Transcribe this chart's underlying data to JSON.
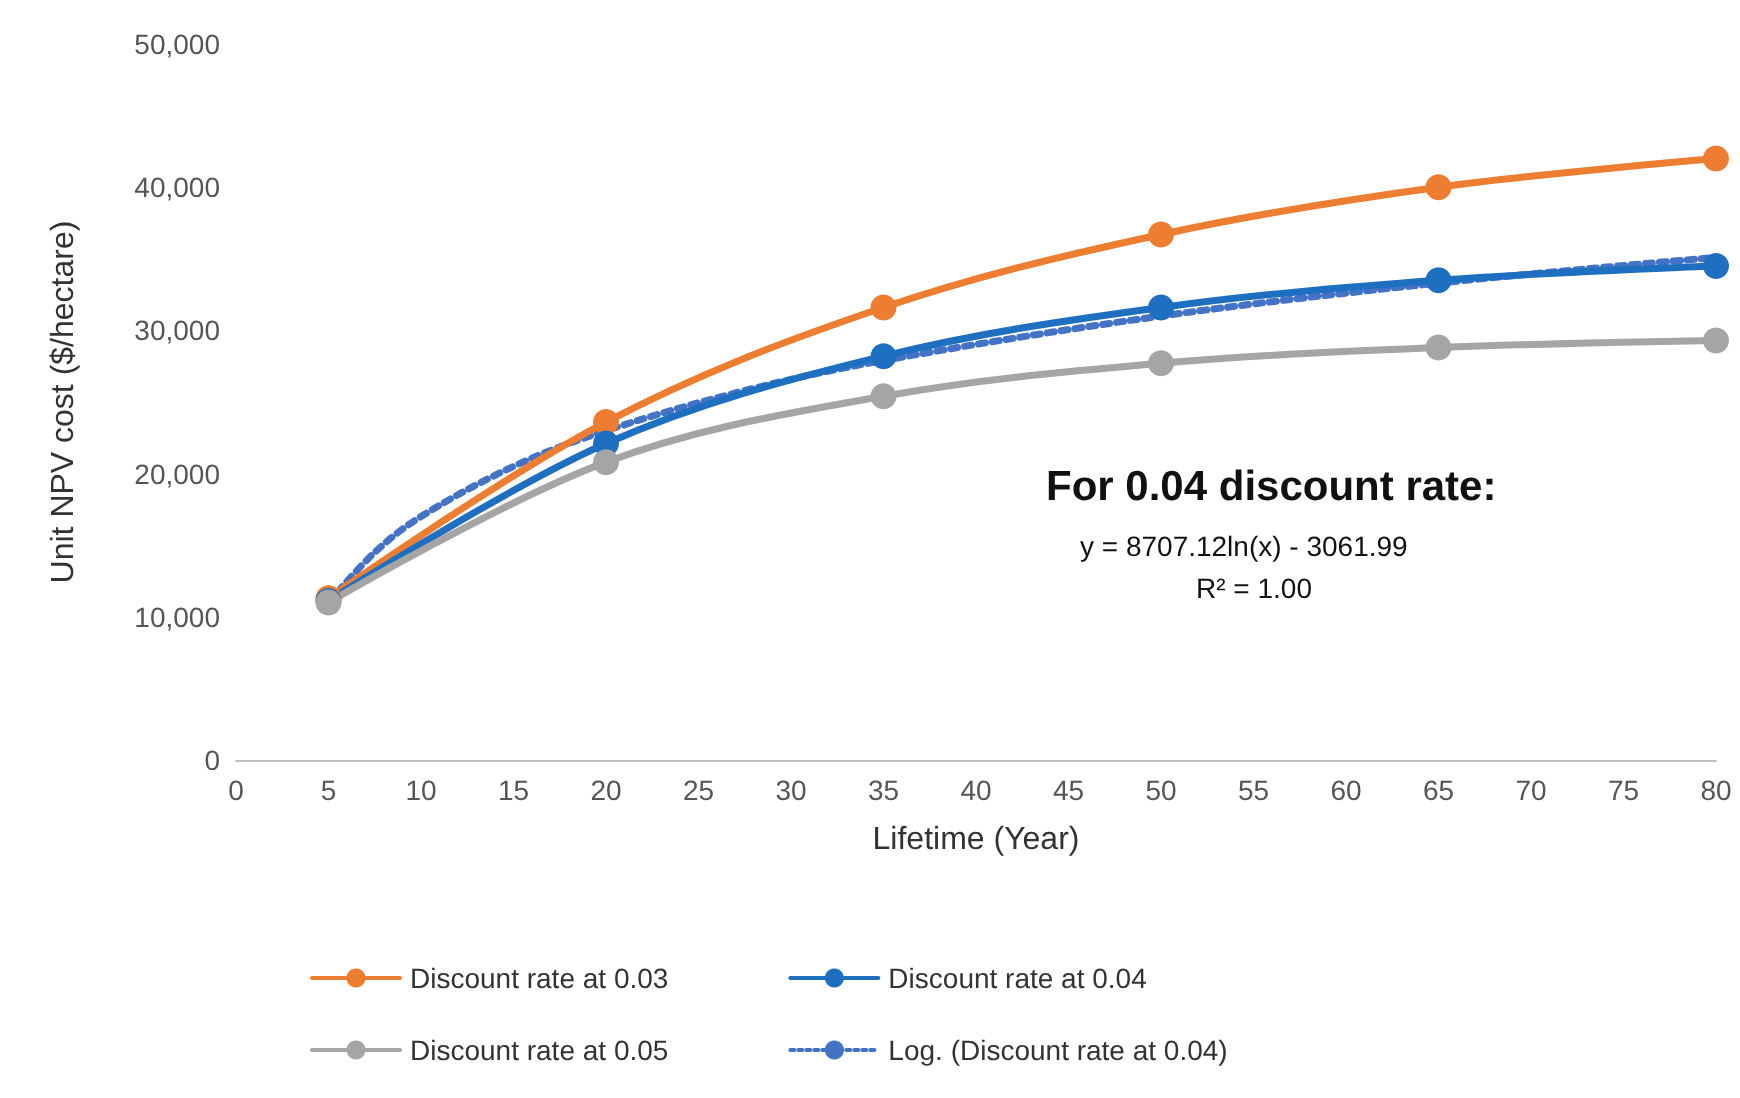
{
  "chart_data": {
    "type": "line",
    "xlabel": "Lifetime (Year)",
    "ylabel": "Unit NPV cost ($/hectare)",
    "x": [
      5,
      20,
      35,
      50,
      65,
      80
    ],
    "series": [
      {
        "name": "Discount rate at 0.03",
        "color": "#ed7d31",
        "values": [
          11300,
          23600,
          31600,
          36700,
          40000,
          42000
        ]
      },
      {
        "name": "Discount rate at 0.04",
        "color": "#1f6fc1",
        "values": [
          11100,
          22100,
          28200,
          31600,
          33500,
          34500
        ]
      },
      {
        "name": "Discount rate at 0.05",
        "color": "#a5a5a5",
        "values": [
          11000,
          20800,
          25400,
          27700,
          28800,
          29300
        ]
      },
      {
        "name": "Log. (Discount rate at 0.04)",
        "color": "#4472c4",
        "marker": "none",
        "line_style": "dotted",
        "x": [
          5,
          7.5,
          10,
          15,
          20,
          27.5,
          35,
          50,
          65,
          80
        ],
        "values": [
          11000,
          14500,
          17000,
          20500,
          23000,
          25800,
          27900,
          31000,
          33300,
          35100
        ]
      }
    ],
    "annotations": [
      "For 0.04 discount rate:",
      "y = 8707.12ln(x) - 3061.99",
      "R² = 1.00"
    ],
    "xlim": [
      0,
      80
    ],
    "xticks": [
      0,
      5,
      10,
      15,
      20,
      25,
      30,
      35,
      40,
      45,
      50,
      55,
      60,
      65,
      70,
      75,
      80
    ],
    "ylim": [
      0,
      50000
    ],
    "yticks": [
      0,
      {
        "value": 10000,
        "label": "10,000"
      },
      {
        "value": 20000,
        "label": "20,000"
      },
      {
        "value": 30000,
        "label": "30,000"
      },
      {
        "value": 40000,
        "label": "40,000"
      },
      {
        "value": 50000,
        "label": "50,000"
      }
    ],
    "grid": false,
    "legend": "bottom",
    "marker": "circle",
    "line_style": "solid"
  }
}
